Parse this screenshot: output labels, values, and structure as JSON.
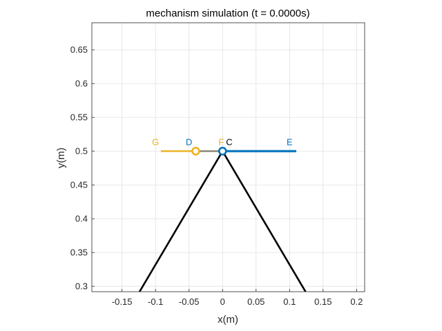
{
  "chart_data": {
    "type": "line",
    "title": "mechanism simulation (t = 0.0000s)",
    "xlabel": "x(m)",
    "ylabel": "y(m)",
    "xlim": [
      -0.195,
      0.212
    ],
    "ylim": [
      0.292,
      0.69
    ],
    "xticks": [
      -0.15,
      -0.1,
      -0.05,
      0,
      0.05,
      0.1,
      0.15,
      0.2
    ],
    "xtick_labels": [
      "-0.15",
      "-0.1",
      "-0.05",
      "0",
      "0.05",
      "0.1",
      "0.15",
      "0.2"
    ],
    "yticks": [
      0.3,
      0.35,
      0.4,
      0.45,
      0.5,
      0.55,
      0.6,
      0.65
    ],
    "ytick_labels": [
      "0.3",
      "0.35",
      "0.4",
      "0.45",
      "0.5",
      "0.55",
      "0.6",
      "0.65"
    ],
    "grid": true,
    "series": [
      {
        "color": "#000000",
        "x": [
          -0.125,
          0
        ],
        "y": [
          0.29,
          0.5
        ]
      },
      {
        "color": "#000000",
        "x": [
          0,
          0.125
        ],
        "y": [
          0.5,
          0.29
        ]
      },
      {
        "color": "#EDB120",
        "x": [
          -0.092,
          0
        ],
        "y": [
          0.5,
          0.5
        ]
      },
      {
        "color": "#7E7E7E",
        "x": [
          -0.04,
          0
        ],
        "y": [
          0.5,
          0.5
        ]
      },
      {
        "color": "#0072BD",
        "x": [
          0,
          0.11
        ],
        "y": [
          0.5,
          0.5
        ]
      }
    ],
    "markers": [
      {
        "x": -0.04,
        "y": 0.5,
        "color": "#EDB120"
      },
      {
        "x": 0,
        "y": 0.5,
        "color": "#0072BD"
      }
    ],
    "annotations": [
      {
        "text": "G",
        "x": -0.1,
        "y": 0.506,
        "color": "#EDB120"
      },
      {
        "text": "D",
        "x": -0.05,
        "y": 0.506,
        "color": "#0072BD"
      },
      {
        "text": "F",
        "x": -0.002,
        "y": 0.506,
        "color": "#EDB120"
      },
      {
        "text": "C",
        "x": 0.01,
        "y": 0.506,
        "color": "#000000"
      },
      {
        "text": "E",
        "x": 0.1,
        "y": 0.506,
        "color": "#0072BD"
      }
    ]
  }
}
